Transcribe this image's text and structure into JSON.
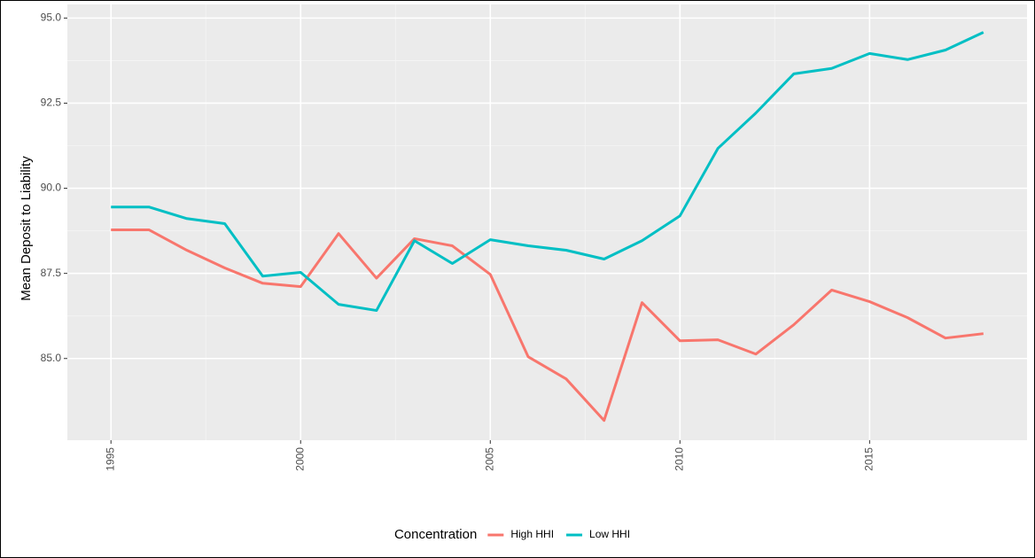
{
  "chart_data": {
    "type": "line",
    "y_label": "Mean Deposit to Liability",
    "legend_title": "Concentration",
    "legend_position": "bottom",
    "grid": true,
    "x": [
      1995,
      1996,
      1997,
      1998,
      1999,
      2000,
      2001,
      2002,
      2003,
      2004,
      2005,
      2006,
      2007,
      2008,
      2009,
      2010,
      2011,
      2012,
      2013,
      2014,
      2015,
      2016,
      2017,
      2018
    ],
    "xlim": [
      1993.85,
      2019.15
    ],
    "xticks": [
      1995,
      2000,
      2005,
      2010,
      2015
    ],
    "ylim": [
      82.6,
      95.4
    ],
    "yticks": [
      {
        "value": 85,
        "label": "85.0"
      },
      {
        "value": 87.5,
        "label": "87.5"
      },
      {
        "value": 90,
        "label": "90.0"
      },
      {
        "value": 92.5,
        "label": "92.5"
      },
      {
        "value": 95,
        "label": "95.0"
      }
    ],
    "series": [
      {
        "name": "High HHI",
        "color": "#F8766D",
        "values": [
          88.78,
          88.78,
          88.18,
          87.66,
          87.21,
          87.11,
          88.67,
          87.36,
          88.52,
          88.31,
          87.47,
          85.05,
          84.4,
          83.18,
          86.64,
          85.52,
          85.55,
          85.13,
          85.99,
          87.01,
          86.67,
          86.2,
          85.6,
          85.73
        ]
      },
      {
        "name": "Low HHI",
        "color": "#00BFC4",
        "values": [
          89.45,
          89.45,
          89.11,
          88.96,
          87.42,
          87.53,
          86.59,
          86.41,
          88.46,
          87.79,
          88.49,
          88.31,
          88.18,
          87.92,
          88.46,
          89.19,
          91.17,
          92.21,
          93.36,
          93.52,
          93.96,
          93.78,
          94.06,
          94.58
        ]
      }
    ]
  }
}
